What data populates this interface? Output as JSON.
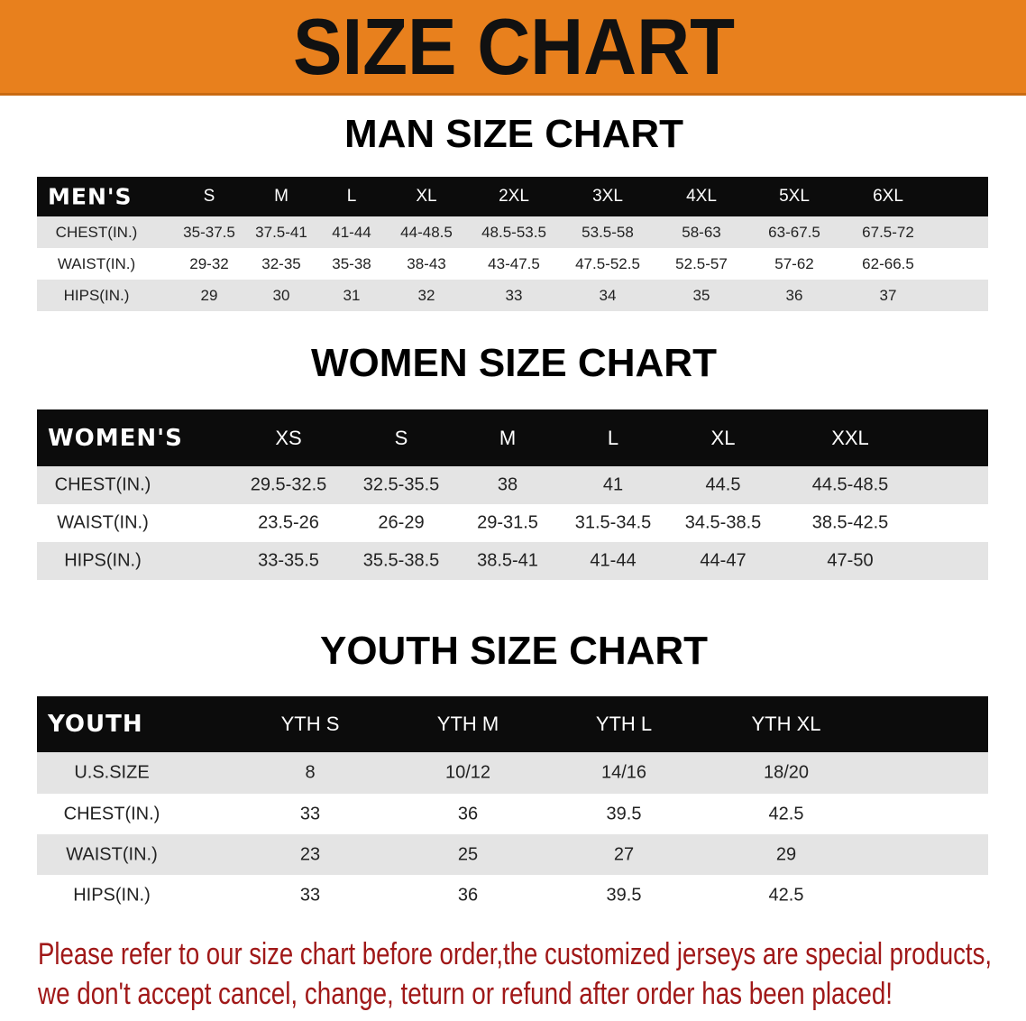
{
  "title": "SIZE CHART",
  "colors": {
    "banner": "#e8801d",
    "header_bg": "#0c0c0c",
    "row_gray": "#e4e4e4",
    "note": "#a01818"
  },
  "men": {
    "title": "MAN SIZE CHART",
    "header_label": "MEN'S",
    "sizes": [
      "S",
      "M",
      "L",
      "XL",
      "2XL",
      "3XL",
      "4XL",
      "5XL",
      "6XL"
    ],
    "rows": [
      {
        "label": "CHEST(IN.)",
        "values": [
          "35-37.5",
          "37.5-41",
          "41-44",
          "44-48.5",
          "48.5-53.5",
          "53.5-58",
          "58-63",
          "63-67.5",
          "67.5-72"
        ]
      },
      {
        "label": "WAIST(IN.)",
        "values": [
          "29-32",
          "32-35",
          "35-38",
          "38-43",
          "43-47.5",
          "47.5-52.5",
          "52.5-57",
          "57-62",
          "62-66.5"
        ]
      },
      {
        "label": "HIPS(IN.)",
        "values": [
          "29",
          "30",
          "31",
          "32",
          "33",
          "34",
          "35",
          "36",
          "37"
        ]
      }
    ]
  },
  "women": {
    "title": "WOMEN SIZE CHART",
    "header_label": "WOMEN'S",
    "sizes": [
      "XS",
      "S",
      "M",
      "L",
      "XL",
      "XXL"
    ],
    "rows": [
      {
        "label": "CHEST(IN.)",
        "values": [
          "29.5-32.5",
          "32.5-35.5",
          "38",
          "41",
          "44.5",
          "44.5-48.5"
        ]
      },
      {
        "label": "WAIST(IN.)",
        "values": [
          "23.5-26",
          "26-29",
          "29-31.5",
          "31.5-34.5",
          "34.5-38.5",
          "38.5-42.5"
        ]
      },
      {
        "label": "HIPS(IN.)",
        "values": [
          "33-35.5",
          "35.5-38.5",
          "38.5-41",
          "41-44",
          "44-47",
          "47-50"
        ]
      }
    ]
  },
  "youth": {
    "title": "YOUTH SIZE CHART",
    "header_label": "YOUTH",
    "sizes": [
      "YTH S",
      "YTH M",
      "YTH L",
      "YTH XL"
    ],
    "rows": [
      {
        "label": "U.S.SIZE",
        "values": [
          "8",
          "10/12",
          "14/16",
          "18/20"
        ]
      },
      {
        "label": "CHEST(IN.)",
        "values": [
          "33",
          "36",
          "39.5",
          "42.5"
        ]
      },
      {
        "label": "WAIST(IN.)",
        "values": [
          "23",
          "25",
          "27",
          "29"
        ]
      },
      {
        "label": "HIPS(IN.)",
        "values": [
          "33",
          "36",
          "39.5",
          "42.5"
        ]
      }
    ]
  },
  "note": {
    "line1": "Please refer to our size chart before order,the customized jerseys are special products,",
    "line2": "we don't accept cancel, change, teturn or refund after order has been placed!"
  }
}
